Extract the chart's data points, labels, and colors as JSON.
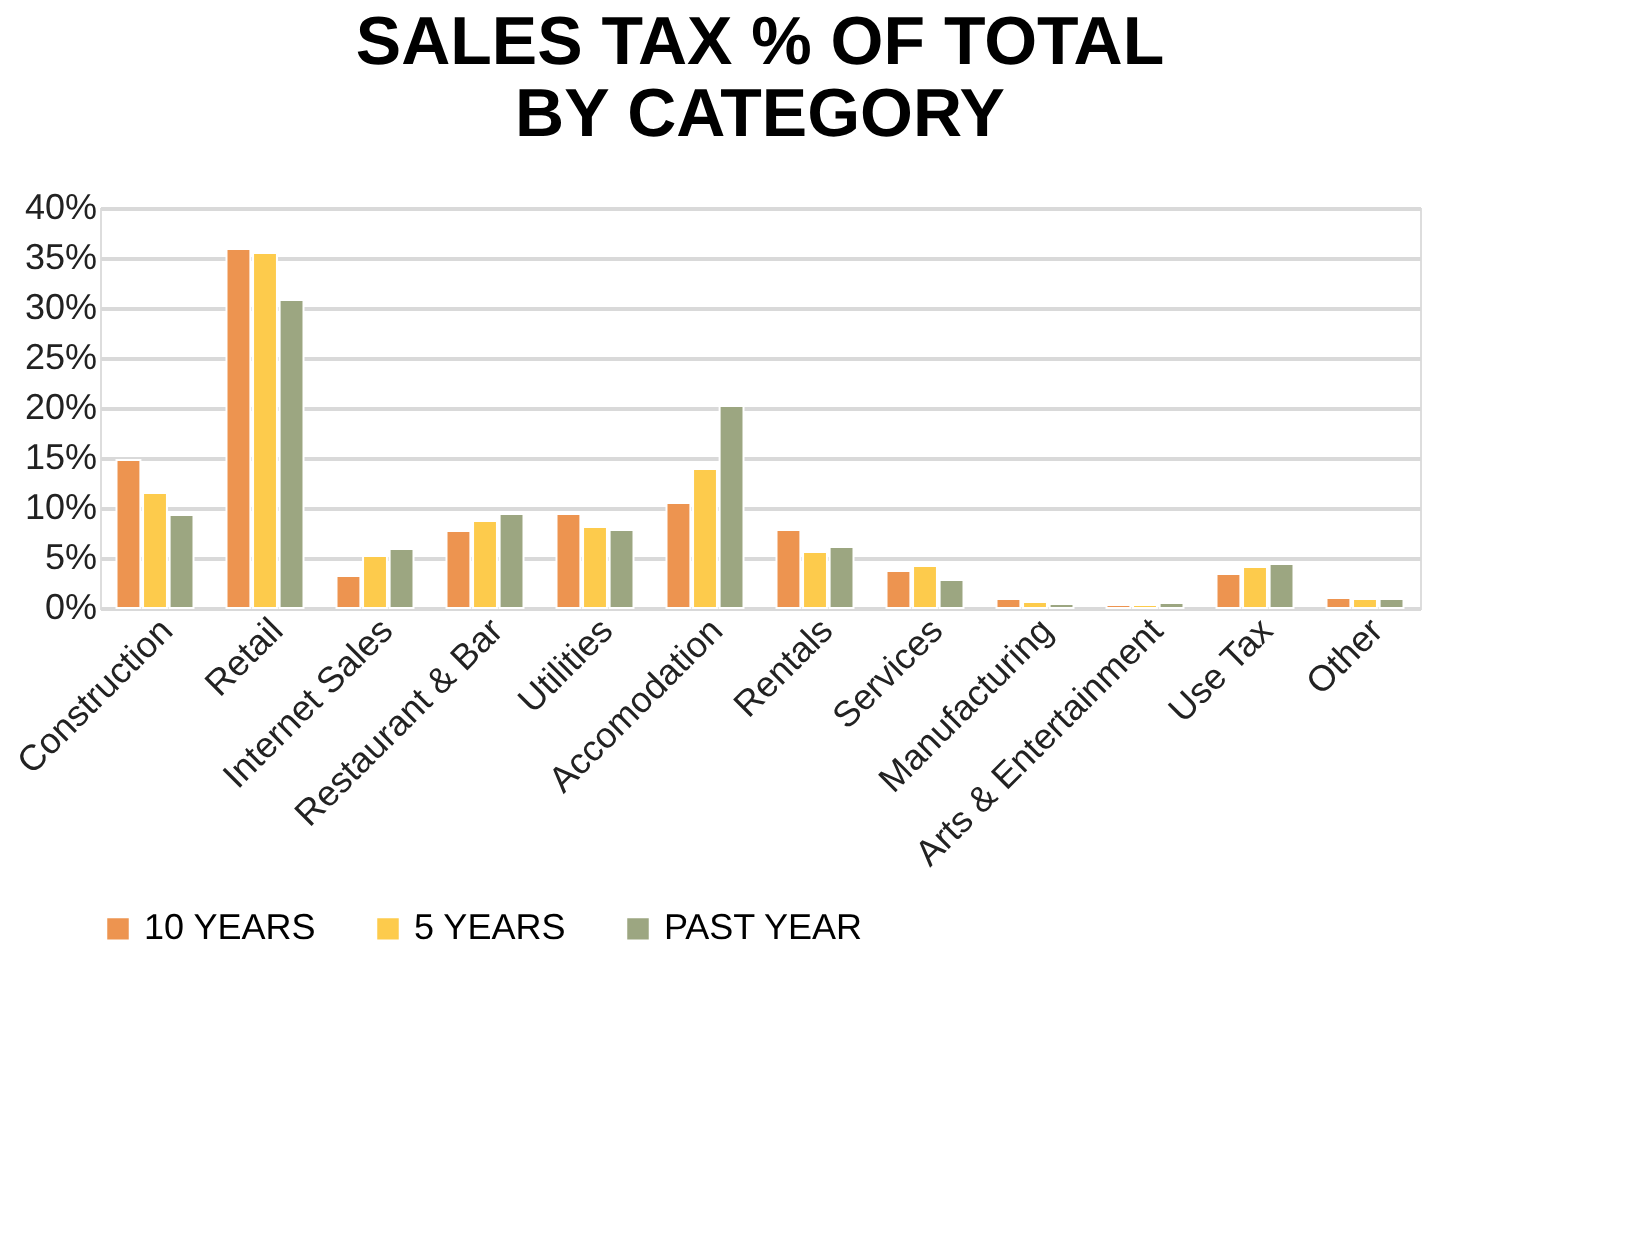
{
  "chart_data": {
    "type": "bar",
    "title": [
      "SALES TAX % OF TOTAL",
      "BY CATEGORY"
    ],
    "categories": [
      "Construction",
      "Retail",
      "Internet Sales",
      "Restaurant & Bar",
      "Utilities",
      "Accomodation",
      "Rentals",
      "Services",
      "Manufacturing",
      "Arts & Entertainment",
      "Use Tax",
      "Other"
    ],
    "series": [
      {
        "name": "10 YEARS",
        "color": "#ed9450",
        "values": [
          14.8,
          35.9,
          3.2,
          7.7,
          9.4,
          10.5,
          7.8,
          3.7,
          0.9,
          0.3,
          3.4,
          1.0
        ]
      },
      {
        "name": "5 YEARS",
        "color": "#fdcb4c",
        "values": [
          11.5,
          35.5,
          5.2,
          8.7,
          8.1,
          13.9,
          5.6,
          4.2,
          0.6,
          0.3,
          4.1,
          0.9
        ]
      },
      {
        "name": "PAST YEAR",
        "color": "#9ca681",
        "values": [
          9.3,
          30.8,
          5.9,
          9.4,
          7.8,
          20.2,
          6.1,
          2.8,
          0.4,
          0.5,
          4.4,
          0.9
        ]
      }
    ],
    "ylim": [
      0,
      40
    ],
    "yticks": [
      {
        "value": 0,
        "label": "0%"
      },
      {
        "value": 5,
        "label": "5%"
      },
      {
        "value": 10,
        "label": "10%"
      },
      {
        "value": 15,
        "label": "15%"
      },
      {
        "value": 20,
        "label": "20%"
      },
      {
        "value": 25,
        "label": "25%"
      },
      {
        "value": 30,
        "label": "30%"
      },
      {
        "value": 35,
        "label": "35%"
      },
      {
        "value": 40,
        "label": "40%"
      }
    ],
    "grid": "y",
    "legend": "bottom"
  }
}
